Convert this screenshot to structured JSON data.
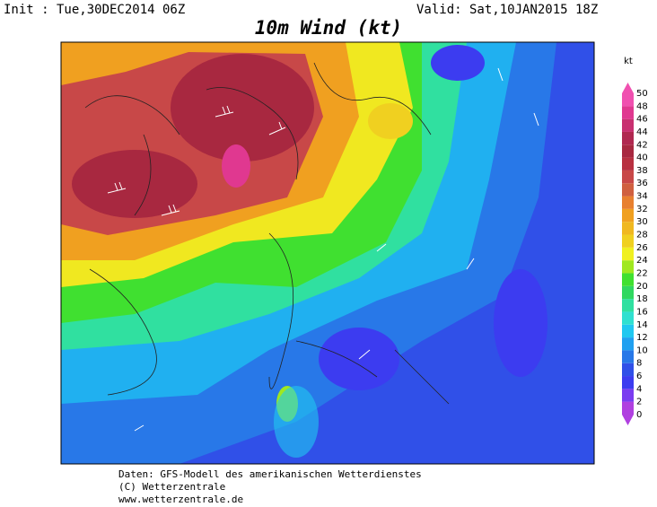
{
  "header": {
    "init": "Init : Tue,30DEC2014 06Z",
    "valid": "Valid: Sat,10JAN2015 18Z",
    "title": "10m Wind (kt)"
  },
  "colorbar": {
    "unit": "kt",
    "levels": [
      0,
      2,
      4,
      6,
      8,
      10,
      12,
      14,
      16,
      18,
      20,
      22,
      24,
      26,
      28,
      30,
      32,
      34,
      36,
      38,
      40,
      42,
      44,
      46,
      48,
      50
    ],
    "colors": [
      "#b040e0",
      "#7a3cf0",
      "#3c3cf0",
      "#3050e8",
      "#2878e8",
      "#20a0f0",
      "#20c8f0",
      "#30e0d0",
      "#30e0a0",
      "#30d860",
      "#40e030",
      "#a0e820",
      "#f0f020",
      "#f0d020",
      "#f0b820",
      "#f0a020",
      "#e88030",
      "#d06040",
      "#c84848",
      "#b83040",
      "#a82840",
      "#b02850",
      "#c83070",
      "#e03890",
      "#f050b0"
    ]
  },
  "footer": {
    "lines": [
      "Daten: GFS-Modell des amerikanischen Wetterdienstes",
      "(C) Wetterzentrale",
      "www.wetterzentrale.de"
    ]
  }
}
